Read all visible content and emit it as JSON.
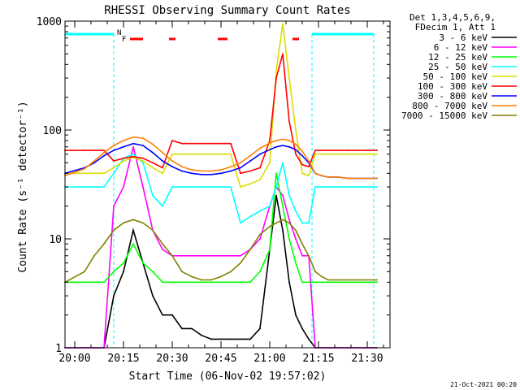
{
  "chart_data": {
    "type": "line",
    "title": "RHESSI Observing Summary Count Rates",
    "xlabel": "Start Time (06-Nov-02 19:57:02)",
    "ylabel": "Count Rate (s⁻¹ detector⁻¹)",
    "yscale": "log",
    "ylim": [
      1,
      1000
    ],
    "xlim": [
      "19:57",
      "21:37"
    ],
    "x_ticks": [
      "20:00",
      "20:15",
      "20:30",
      "20:45",
      "21:00",
      "21:15",
      "21:30"
    ],
    "y_ticks": [
      "1",
      "10",
      "100",
      "1000"
    ],
    "legend_header": [
      "Det 1,3,4,5,6,9,",
      "FDecim 1, Att 1"
    ],
    "legend_placement": "right",
    "footer": "21-Oct-2021 00:20",
    "flag_labels": [
      "N",
      "F"
    ],
    "night_intervals": [
      [
        "19:57",
        "20:12"
      ],
      [
        "21:13",
        "21:32"
      ]
    ],
    "flare_bars": [
      [
        "20:17",
        "20:21"
      ],
      [
        "20:29",
        "20:31"
      ],
      [
        "20:44",
        "20:47"
      ],
      [
        "21:07",
        "21:09"
      ]
    ],
    "x": [
      "19:57",
      "20:03",
      "20:06",
      "20:09",
      "20:12",
      "20:15",
      "20:18",
      "20:21",
      "20:24",
      "20:27",
      "20:30",
      "20:33",
      "20:36",
      "20:39",
      "20:42",
      "20:45",
      "20:48",
      "20:51",
      "20:54",
      "20:57",
      "21:00",
      "21:02",
      "21:04",
      "21:06",
      "21:08",
      "21:10",
      "21:12",
      "21:14",
      "21:16",
      "21:18",
      "21:21",
      "21:24",
      "21:27",
      "21:30",
      "21:33"
    ],
    "series": [
      {
        "name": "3 - 6 keV",
        "color": "#000000",
        "values": [
          1,
          1,
          1,
          1,
          3,
          5,
          12,
          6,
          3,
          2,
          2,
          1.5,
          1.5,
          1.3,
          1.2,
          1.2,
          1.2,
          1.2,
          1.2,
          1.5,
          8,
          25,
          12,
          4,
          2,
          1.5,
          1.2,
          1,
          1,
          1,
          1,
          1,
          1,
          1,
          1
        ]
      },
      {
        "name": "6 - 12 keV",
        "color": "#ff00ff",
        "values": [
          1,
          1,
          1,
          1,
          20,
          30,
          70,
          30,
          12,
          8,
          7,
          7,
          7,
          7,
          7,
          7,
          7,
          7,
          8,
          10,
          20,
          30,
          25,
          15,
          10,
          7,
          7,
          1,
          1,
          1,
          1,
          1,
          1,
          1,
          1
        ]
      },
      {
        "name": "12 - 25 keV",
        "color": "#00ff00",
        "values": [
          4,
          4,
          4,
          4,
          5,
          6,
          9,
          6,
          5,
          4,
          4,
          4,
          4,
          4,
          4,
          4,
          4,
          4,
          4,
          5,
          8,
          40,
          20,
          10,
          6,
          4,
          4,
          4,
          4,
          4,
          4,
          4,
          4,
          4,
          4
        ]
      },
      {
        "name": "25 - 50 keV",
        "color": "#00ffff",
        "values": [
          30,
          30,
          30,
          30,
          40,
          55,
          60,
          50,
          25,
          20,
          30,
          30,
          30,
          30,
          30,
          30,
          30,
          14,
          16,
          18,
          20,
          30,
          50,
          25,
          18,
          14,
          14,
          30,
          30,
          30,
          30,
          30,
          30,
          30,
          30
        ]
      },
      {
        "name": "50 - 100 keV",
        "color": "#dddd00",
        "values": [
          40,
          40,
          40,
          40,
          45,
          52,
          56,
          52,
          45,
          40,
          60,
          60,
          60,
          60,
          60,
          60,
          60,
          30,
          32,
          35,
          50,
          350,
          950,
          300,
          100,
          40,
          38,
          60,
          60,
          60,
          60,
          60,
          60,
          60,
          60
        ]
      },
      {
        "name": "100 - 300 keV",
        "color": "#ff0000",
        "values": [
          65,
          65,
          65,
          65,
          52,
          55,
          57,
          55,
          50,
          45,
          80,
          75,
          75,
          75,
          75,
          75,
          75,
          40,
          42,
          45,
          80,
          300,
          500,
          120,
          60,
          48,
          46,
          65,
          65,
          65,
          65,
          65,
          65,
          65,
          65
        ]
      },
      {
        "name": "300 - 800 keV",
        "color": "#0000ff",
        "values": [
          40,
          45,
          50,
          58,
          65,
          70,
          75,
          72,
          62,
          52,
          46,
          42,
          40,
          39,
          39,
          40,
          42,
          45,
          52,
          60,
          66,
          70,
          72,
          70,
          66,
          58,
          50,
          40,
          38,
          37,
          37,
          36,
          36,
          36,
          36
        ]
      },
      {
        "name": "800 - 7000 keV",
        "color": "#ff8000",
        "values": [
          38,
          44,
          52,
          62,
          72,
          80,
          86,
          84,
          74,
          62,
          52,
          46,
          43,
          42,
          42,
          43,
          46,
          50,
          58,
          68,
          76,
          80,
          82,
          80,
          74,
          64,
          52,
          40,
          38,
          37,
          37,
          36,
          36,
          36,
          36
        ]
      },
      {
        "name": "7000 - 15000 keV",
        "color": "#808000",
        "values": [
          4,
          5,
          7,
          9,
          12,
          14,
          15,
          14,
          12,
          9,
          7,
          5,
          4.5,
          4.2,
          4.2,
          4.5,
          5,
          6,
          8,
          11,
          13,
          14,
          15,
          14,
          12,
          9,
          7,
          5,
          4.5,
          4.2,
          4.2,
          4.2,
          4.2,
          4.2,
          4.2
        ]
      }
    ]
  }
}
